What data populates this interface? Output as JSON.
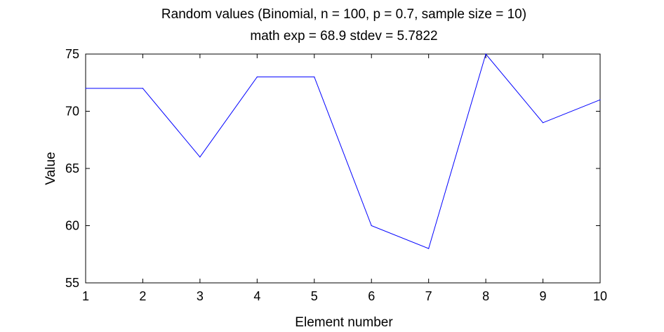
{
  "chart_data": {
    "type": "line",
    "title": "Random values (Binomial, n = 100, p = 0.7, sample size = 10)",
    "subtitle": "math exp = 68.9 stdev = 5.7822",
    "xlabel": "Element number",
    "ylabel": "Value",
    "xlim": [
      1,
      10
    ],
    "ylim": [
      55,
      75
    ],
    "xticks": [
      1,
      2,
      3,
      4,
      5,
      6,
      7,
      8,
      9,
      10
    ],
    "yticks": [
      55,
      60,
      65,
      70,
      75
    ],
    "grid": false,
    "series": [
      {
        "color": "#0000ff",
        "x": [
          1,
          2,
          3,
          4,
          5,
          6,
          7,
          8,
          9,
          10
        ],
        "y": [
          72,
          72,
          66,
          73,
          73,
          60,
          58,
          75,
          69,
          71
        ]
      }
    ]
  }
}
